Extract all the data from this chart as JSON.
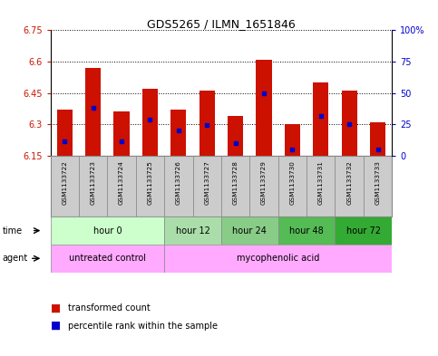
{
  "title": "GDS5265 / ILMN_1651846",
  "samples": [
    "GSM1133722",
    "GSM1133723",
    "GSM1133724",
    "GSM1133725",
    "GSM1133726",
    "GSM1133727",
    "GSM1133728",
    "GSM1133729",
    "GSM1133730",
    "GSM1133731",
    "GSM1133732",
    "GSM1133733"
  ],
  "bar_bottom": 6.15,
  "bar_tops": [
    6.37,
    6.57,
    6.36,
    6.47,
    6.37,
    6.46,
    6.34,
    6.61,
    6.3,
    6.5,
    6.46,
    6.31
  ],
  "blue_dot_values": [
    6.22,
    6.38,
    6.22,
    6.32,
    6.27,
    6.295,
    6.21,
    6.45,
    6.18,
    6.34,
    6.3,
    6.18
  ],
  "ylim_left": [
    6.15,
    6.75
  ],
  "ylim_right": [
    0,
    100
  ],
  "yticks_left": [
    6.15,
    6.3,
    6.45,
    6.6,
    6.75
  ],
  "yticks_right": [
    0,
    25,
    50,
    75,
    100
  ],
  "ytick_labels_left": [
    "6.15",
    "6.3",
    "6.45",
    "6.6",
    "6.75"
  ],
  "ytick_labels_right": [
    "0",
    "25",
    "50",
    "75",
    "100%"
  ],
  "bar_color": "#cc1100",
  "dot_color": "#0000cc",
  "time_groups": [
    {
      "label": "hour 0",
      "start": 0,
      "end": 3,
      "color": "#ccffcc"
    },
    {
      "label": "hour 12",
      "start": 4,
      "end": 5,
      "color": "#aaddaa"
    },
    {
      "label": "hour 24",
      "start": 6,
      "end": 7,
      "color": "#88cc88"
    },
    {
      "label": "hour 48",
      "start": 8,
      "end": 9,
      "color": "#55bb55"
    },
    {
      "label": "hour 72",
      "start": 10,
      "end": 11,
      "color": "#33aa33"
    }
  ],
  "agent_groups": [
    {
      "label": "untreated control",
      "start": 0,
      "end": 3,
      "color": "#ffaaff"
    },
    {
      "label": "mycophenolic acid",
      "start": 4,
      "end": 11,
      "color": "#ffaaff"
    }
  ],
  "tick_color_left": "#cc1100",
  "tick_color_right": "#0000cc",
  "bar_width": 0.55,
  "sample_bg": "#cccccc",
  "sample_border": "#888888"
}
